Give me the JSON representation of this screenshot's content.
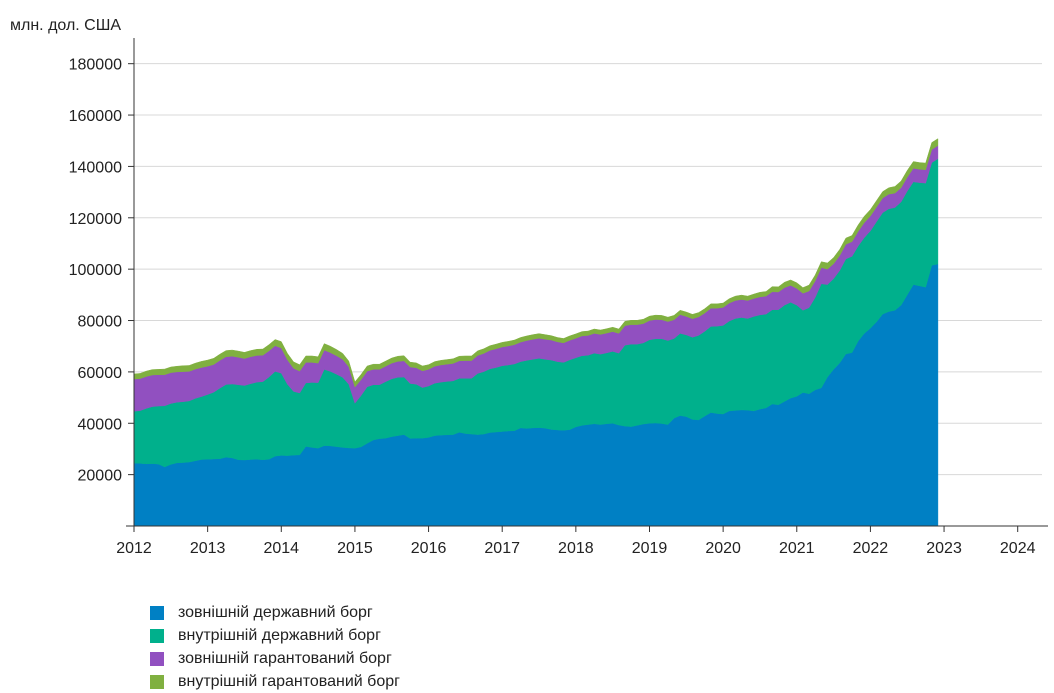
{
  "chart_data": {
    "type": "area",
    "stacked": true,
    "unit_label": "млн. дол. США",
    "x_start": 2012.0,
    "x_step_years": 0.0833333,
    "xlim": [
      2012,
      2024.33
    ],
    "ylim": [
      0,
      190000
    ],
    "yticks": [
      20000,
      40000,
      60000,
      80000,
      100000,
      120000,
      140000,
      160000,
      180000
    ],
    "xticks": [
      2012,
      2013,
      2014,
      2015,
      2016,
      2017,
      2018,
      2019,
      2020,
      2021,
      2022,
      2023,
      2024
    ],
    "grid": true,
    "legend_position": "bottom-left",
    "series": [
      {
        "name": "зовнішній державний борг",
        "color": "#0080c4",
        "values": [
          24500,
          24400,
          24200,
          24300,
          24100,
          23000,
          24000,
          24600,
          24700,
          24900,
          25400,
          25900,
          26000,
          26100,
          26200,
          26800,
          26500,
          25800,
          25700,
          25900,
          26000,
          25800,
          26000,
          27200,
          27500,
          27400,
          27600,
          27700,
          31000,
          30600,
          30300,
          31300,
          31200,
          30900,
          30600,
          30400,
          30300,
          30800,
          32200,
          33500,
          34000,
          34200,
          34800,
          35200,
          35600,
          34100,
          34200,
          34200,
          34500,
          35200,
          35400,
          35500,
          35600,
          36500,
          36000,
          35800,
          35600,
          35800,
          36400,
          36600,
          36800,
          37000,
          37100,
          38200,
          38000,
          38200,
          38300,
          38100,
          37600,
          37400,
          37300,
          37500,
          38600,
          39200,
          39500,
          39800,
          39500,
          39800,
          40000,
          39300,
          38900,
          38700,
          39200,
          39700,
          40000,
          40100,
          39900,
          39500,
          42000,
          43000,
          42600,
          41500,
          41300,
          42800,
          44200,
          43800,
          43600,
          44800,
          45000,
          45200,
          45100,
          44800,
          45500,
          46000,
          47500,
          47200,
          48500,
          49800,
          50500,
          52000,
          51500,
          53000,
          53800,
          58000,
          61000,
          63500,
          67000,
          67500,
          72000,
          75000,
          77000,
          79500,
          82500,
          83500,
          84000,
          86000,
          90000,
          94000,
          93500,
          93000,
          101500,
          102000
        ],
        "inc": [
          0
        ]
      },
      {
        "name": "внутрішній державний борг",
        "color": "#00b08c",
        "values": [
          20200,
          20500,
          21600,
          22200,
          22600,
          23800,
          23700,
          23600,
          23700,
          23800,
          24300,
          24500,
          25200,
          26000,
          27500,
          28300,
          28800,
          29200,
          29000,
          29500,
          30000,
          30400,
          32000,
          33000,
          32000,
          27800,
          24800,
          24100,
          24700,
          25300,
          25500,
          29700,
          29000,
          28200,
          27300,
          24800,
          17500,
          20000,
          22000,
          21500,
          21000,
          22000,
          22500,
          22700,
          22400,
          21400,
          21000,
          19700,
          20000,
          20400,
          20600,
          20800,
          20900,
          21000,
          21500,
          21700,
          23800,
          24300,
          24800,
          25100,
          25600,
          25700,
          26000,
          25800,
          26500,
          26700,
          27000,
          26800,
          27000,
          26600,
          26400,
          27200,
          26900,
          27100,
          27000,
          27500,
          27400,
          27600,
          28000,
          28000,
          31500,
          32100,
          31600,
          31600,
          32500,
          32800,
          33000,
          32700,
          31000,
          32000,
          31800,
          32000,
          32900,
          33000,
          33500,
          34000,
          34500,
          35000,
          35800,
          36000,
          35700,
          36800,
          36700,
          36500,
          36700,
          37000,
          37500,
          37300,
          35500,
          32000,
          33500,
          36000,
          40500,
          36000,
          35300,
          36000,
          37000,
          37500,
          37000,
          37300,
          37900,
          39000,
          39500,
          40000,
          40000,
          40200,
          40400,
          40000,
          40200,
          40500,
          40000,
          41000
        ],
        "inc": [
          0
        ]
      },
      {
        "name": "зовнішній гарантований борг",
        "color": "#9150c0",
        "values": [
          12500,
          12500,
          12400,
          12300,
          12200,
          12100,
          12000,
          11800,
          11700,
          11500,
          11400,
          11300,
          11000,
          10800,
          10800,
          10800,
          10800,
          10700,
          10500,
          10500,
          10400,
          10300,
          10200,
          10000,
          9800,
          9500,
          9000,
          8500,
          8000,
          7800,
          7600,
          7500,
          7300,
          7200,
          7000,
          6800,
          6300,
          6200,
          6100,
          6000,
          6000,
          6000,
          6100,
          6200,
          6300,
          6400,
          6400,
          6500,
          6500,
          6600,
          6700,
          6700,
          6800,
          6800,
          6900,
          6900,
          7000,
          7100,
          7200,
          7300,
          7300,
          7400,
          7500,
          7600,
          7700,
          7800,
          7800,
          7800,
          7800,
          7700,
          7600,
          7600,
          7600,
          7700,
          7700,
          7700,
          7700,
          7700,
          7700,
          7700,
          7600,
          7600,
          7600,
          7500,
          7500,
          7500,
          7400,
          7400,
          7300,
          7300,
          7200,
          7200,
          7200,
          7100,
          7100,
          7000,
          7000,
          7000,
          7000,
          7000,
          7000,
          7000,
          7000,
          7000,
          7000,
          6900,
          6800,
          6600,
          6500,
          6600,
          6500,
          6400,
          6300,
          6000,
          5800,
          5800,
          5700,
          5700,
          5700,
          5800,
          5800,
          5700,
          5700,
          5700,
          5600,
          5500,
          5400,
          5300,
          5200,
          5200,
          5100,
          5100
        ],
        "inc": [
          0
        ]
      },
      {
        "name": "внутрішній гарантований борг",
        "color": "#80b040",
        "values": [
          2000,
          2000,
          2100,
          2100,
          2100,
          2200,
          2200,
          2200,
          2300,
          2300,
          2300,
          2400,
          2400,
          2400,
          2400,
          2400,
          2400,
          2400,
          2400,
          2400,
          2400,
          2400,
          2400,
          2400,
          2500,
          2500,
          2500,
          2500,
          2500,
          2500,
          2500,
          2500,
          2500,
          2400,
          2300,
          2200,
          2000,
          2000,
          2000,
          2000,
          2000,
          2000,
          2000,
          2000,
          2000,
          1900,
          1900,
          1900,
          1800,
          1800,
          1800,
          1800,
          1800,
          1800,
          1800,
          1800,
          1800,
          1800,
          1800,
          1800,
          1800,
          1800,
          1800,
          1800,
          1800,
          1800,
          1800,
          1800,
          1700,
          1700,
          1700,
          1700,
          1700,
          1700,
          1700,
          1700,
          1700,
          1700,
          1700,
          1700,
          1700,
          1700,
          1700,
          1700,
          1700,
          1700,
          1700,
          1700,
          1700,
          1700,
          1700,
          1700,
          1700,
          1700,
          1700,
          1700,
          1700,
          1700,
          1700,
          1700,
          1700,
          1700,
          1800,
          1800,
          2000,
          2000,
          2100,
          2100,
          2200,
          2200,
          2300,
          2300,
          2300,
          2400,
          2400,
          2400,
          2400,
          2400,
          2500,
          2500,
          2500,
          2500,
          2500,
          2500,
          2600,
          2600,
          2600,
          2600,
          2600,
          2600,
          2700,
          2700
        ],
        "inc": [
          0
        ]
      }
    ]
  }
}
